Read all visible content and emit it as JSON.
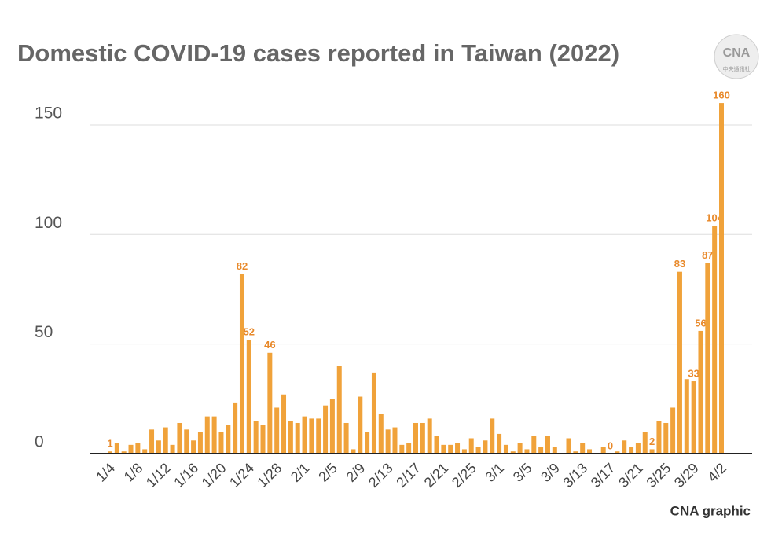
{
  "chart_data": {
    "type": "bar",
    "title": "Domestic COVID-19 cases reported in Taiwan (2022)",
    "source": "CNA graphic",
    "logo": "CNA",
    "logo_sub": "中央通訊社",
    "color": "#f0a23a",
    "label_color": "#e8892a",
    "grid": true,
    "categories": [
      "1/4",
      null,
      null,
      null,
      "1/8",
      null,
      null,
      null,
      "1/12",
      null,
      null,
      null,
      "1/16",
      null,
      null,
      null,
      "1/20",
      null,
      null,
      null,
      "1/24",
      null,
      null,
      null,
      "1/28",
      null,
      null,
      null,
      "2/1",
      null,
      null,
      null,
      "2/5",
      null,
      null,
      null,
      "2/9",
      null,
      null,
      null,
      "2/13",
      null,
      null,
      null,
      "2/17",
      null,
      null,
      null,
      "2/21",
      null,
      null,
      null,
      "2/25",
      null,
      null,
      null,
      "3/1",
      null,
      null,
      null,
      "3/5",
      null,
      null,
      null,
      "3/9",
      null,
      null,
      null,
      "3/13",
      null,
      null,
      null,
      "3/17",
      null,
      null,
      null,
      "3/21",
      null,
      null,
      null,
      "3/25",
      null,
      null,
      null,
      "3/29",
      null,
      null,
      null,
      "4/2"
    ],
    "values": [
      1,
      5,
      1,
      4,
      5,
      2,
      11,
      6,
      12,
      4,
      14,
      11,
      6,
      10,
      17,
      17,
      10,
      13,
      23,
      82,
      52,
      15,
      13,
      46,
      21,
      27,
      15,
      14,
      17,
      16,
      16,
      22,
      25,
      40,
      14,
      2,
      26,
      10,
      37,
      18,
      11,
      12,
      4,
      5,
      14,
      14,
      16,
      8,
      4,
      4,
      5,
      2,
      7,
      3,
      6,
      16,
      9,
      4,
      1,
      5,
      2,
      8,
      3,
      8,
      3,
      0,
      7,
      1,
      5,
      2,
      0,
      3,
      0,
      1,
      6,
      3,
      5,
      10,
      2,
      15,
      14,
      21,
      83,
      34,
      33,
      56,
      87,
      104,
      160
    ],
    "value_labels": [
      "1",
      null,
      null,
      null,
      null,
      null,
      null,
      null,
      null,
      null,
      null,
      null,
      null,
      null,
      null,
      null,
      null,
      null,
      null,
      "82",
      "52",
      null,
      null,
      "46",
      null,
      null,
      null,
      null,
      null,
      null,
      null,
      null,
      null,
      null,
      null,
      null,
      null,
      null,
      null,
      null,
      null,
      null,
      null,
      null,
      null,
      null,
      null,
      null,
      null,
      null,
      null,
      null,
      null,
      null,
      null,
      null,
      null,
      null,
      null,
      null,
      null,
      null,
      null,
      null,
      null,
      null,
      null,
      null,
      null,
      null,
      null,
      null,
      "0",
      null,
      null,
      null,
      null,
      null,
      "2",
      null,
      null,
      null,
      "83",
      null,
      "33",
      "56",
      "87",
      "104",
      "160"
    ],
    "ylim": [
      0,
      165
    ],
    "yticks": [
      0,
      50,
      100,
      150
    ]
  }
}
